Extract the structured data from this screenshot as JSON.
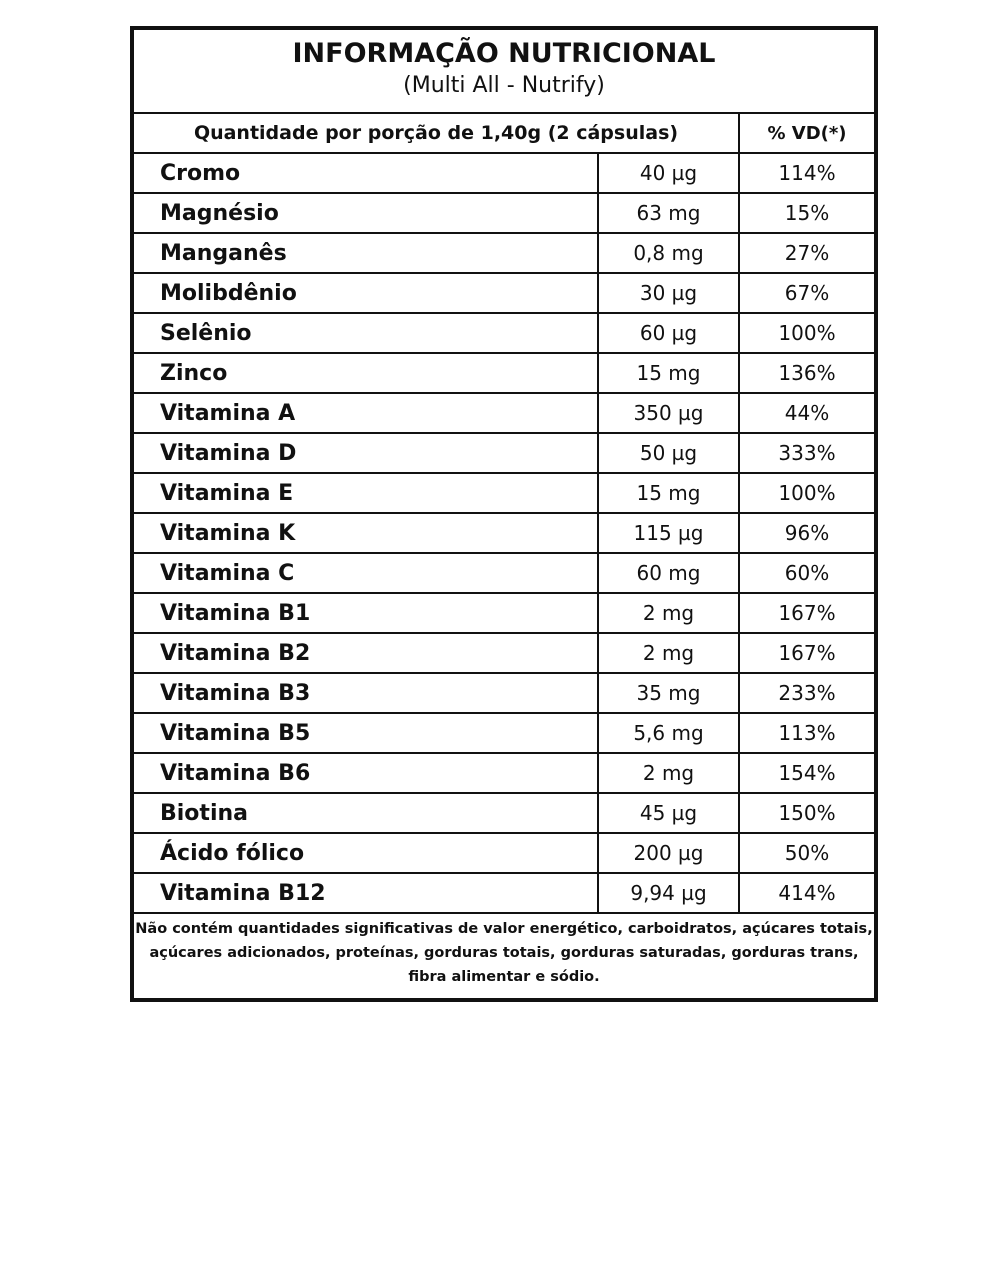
{
  "header": {
    "title": "INFORMAÇÃO NUTRICIONAL",
    "subtitle": "(Multi All - Nutrify)"
  },
  "table": {
    "columns": [
      "Quantidade por porção de 1,40g (2 cápsulas)",
      "% VD(*)"
    ],
    "rows": [
      [
        "Cromo",
        "40 µg",
        "114%"
      ],
      [
        "Magnésio",
        "63 mg",
        "15%"
      ],
      [
        "Manganês",
        "0,8 mg",
        "27%"
      ],
      [
        "Molibdênio",
        "30 µg",
        "67%"
      ],
      [
        "Selênio",
        "60 µg",
        "100%"
      ],
      [
        "Zinco",
        "15 mg",
        "136%"
      ],
      [
        "Vitamina A",
        "350 µg",
        "44%"
      ],
      [
        "Vitamina D",
        "50 µg",
        "333%"
      ],
      [
        "Vitamina E",
        "15 mg",
        "100%"
      ],
      [
        "Vitamina K",
        "115 µg",
        "96%"
      ],
      [
        "Vitamina C",
        "60 mg",
        "60%"
      ],
      [
        "Vitamina B1",
        "2 mg",
        "167%"
      ],
      [
        "Vitamina B2",
        "2 mg",
        "167%"
      ],
      [
        "Vitamina B3",
        "35 mg",
        "233%"
      ],
      [
        "Vitamina B5",
        "5,6 mg",
        "113%"
      ],
      [
        "Vitamina B6",
        "2 mg",
        "154%"
      ],
      [
        "Biotina",
        "45 µg",
        "150%"
      ],
      [
        "Ácido fólico",
        "200 µg",
        "50%"
      ],
      [
        "Vitamina B12",
        "9,94 µg",
        "414%"
      ]
    ]
  },
  "footer": "Não contém quantidades significativas de valor energético, carboidratos, açúcares totais, açúcares adicionados, proteínas, gorduras totais, gorduras saturadas, gorduras trans, fibra alimentar e sódio."
}
